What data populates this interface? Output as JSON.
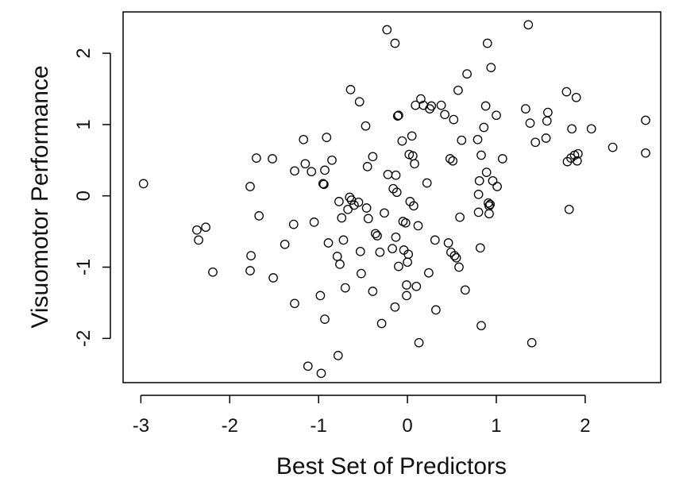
{
  "chart_data": {
    "type": "scatter",
    "title": "",
    "xlabel": "Best Set of Predictors",
    "ylabel": "Visuomotor Performance",
    "xlim": [
      -3.2,
      2.85
    ],
    "ylim": [
      -2.62,
      2.58
    ],
    "xticks": [
      -3,
      -2,
      -1,
      0,
      1,
      2
    ],
    "yticks": [
      -2,
      -1,
      0,
      1,
      2
    ],
    "xtick_labels": [
      "-3",
      "-2",
      "-1",
      "0",
      "1",
      "2"
    ],
    "ytick_labels": [
      "-2",
      "-1",
      "0",
      "1",
      "2"
    ],
    "grid": false,
    "legend": "none",
    "marker": "open-circle",
    "colors": {
      "marker_stroke": "#000000",
      "axis": "#000000"
    },
    "points": [
      {
        "x": -2.97,
        "y": 0.17
      },
      {
        "x": -2.37,
        "y": -0.48
      },
      {
        "x": -2.35,
        "y": -0.62
      },
      {
        "x": -2.27,
        "y": -0.44
      },
      {
        "x": -2.19,
        "y": -1.07
      },
      {
        "x": -1.77,
        "y": 0.13
      },
      {
        "x": -1.77,
        "y": -1.05
      },
      {
        "x": -1.76,
        "y": -0.84
      },
      {
        "x": -1.7,
        "y": 0.53
      },
      {
        "x": -1.67,
        "y": -0.28
      },
      {
        "x": -1.52,
        "y": 0.52
      },
      {
        "x": -1.51,
        "y": -1.15
      },
      {
        "x": -1.38,
        "y": -0.68
      },
      {
        "x": -1.28,
        "y": -0.4
      },
      {
        "x": -1.27,
        "y": -1.51
      },
      {
        "x": -1.27,
        "y": 0.35
      },
      {
        "x": -1.17,
        "y": 0.79
      },
      {
        "x": -1.15,
        "y": 0.45
      },
      {
        "x": -1.12,
        "y": -2.39
      },
      {
        "x": -1.08,
        "y": 0.34
      },
      {
        "x": -1.05,
        "y": -0.37
      },
      {
        "x": -0.98,
        "y": -1.4
      },
      {
        "x": -0.97,
        "y": -2.49
      },
      {
        "x": -0.95,
        "y": 0.17
      },
      {
        "x": -0.94,
        "y": 0.16
      },
      {
        "x": -0.93,
        "y": 0.36
      },
      {
        "x": -0.93,
        "y": -1.73
      },
      {
        "x": -0.91,
        "y": 0.82
      },
      {
        "x": -0.89,
        "y": -0.66
      },
      {
        "x": -0.85,
        "y": 0.5
      },
      {
        "x": -0.79,
        "y": -0.85
      },
      {
        "x": -0.78,
        "y": -2.24
      },
      {
        "x": -0.77,
        "y": -0.08
      },
      {
        "x": -0.76,
        "y": -0.96
      },
      {
        "x": -0.74,
        "y": -0.31
      },
      {
        "x": -0.72,
        "y": -0.62
      },
      {
        "x": -0.7,
        "y": -1.29
      },
      {
        "x": -0.67,
        "y": -0.19
      },
      {
        "x": -0.65,
        "y": -0.02
      },
      {
        "x": -0.64,
        "y": 1.49
      },
      {
        "x": -0.63,
        "y": -0.06
      },
      {
        "x": -0.6,
        "y": -0.13
      },
      {
        "x": -0.55,
        "y": -0.09
      },
      {
        "x": -0.54,
        "y": 1.32
      },
      {
        "x": -0.53,
        "y": -0.78
      },
      {
        "x": -0.52,
        "y": -1.09
      },
      {
        "x": -0.47,
        "y": 0.98
      },
      {
        "x": -0.46,
        "y": -0.17
      },
      {
        "x": -0.45,
        "y": 0.41
      },
      {
        "x": -0.44,
        "y": -0.32
      },
      {
        "x": -0.39,
        "y": 0.55
      },
      {
        "x": -0.39,
        "y": -1.34
      },
      {
        "x": -0.36,
        "y": -0.53
      },
      {
        "x": -0.34,
        "y": -0.56
      },
      {
        "x": -0.31,
        "y": -0.79
      },
      {
        "x": -0.29,
        "y": -1.79
      },
      {
        "x": -0.26,
        "y": -0.24
      },
      {
        "x": -0.23,
        "y": 2.33
      },
      {
        "x": -0.22,
        "y": 0.3
      },
      {
        "x": -0.17,
        "y": -0.74
      },
      {
        "x": -0.16,
        "y": 0.1
      },
      {
        "x": -0.14,
        "y": 2.14
      },
      {
        "x": -0.14,
        "y": -1.56
      },
      {
        "x": -0.13,
        "y": 0.29
      },
      {
        "x": -0.13,
        "y": -0.58
      },
      {
        "x": -0.12,
        "y": 0.05
      },
      {
        "x": -0.11,
        "y": 1.12
      },
      {
        "x": -0.1,
        "y": 1.13
      },
      {
        "x": -0.1,
        "y": -0.99
      },
      {
        "x": -0.06,
        "y": 0.77
      },
      {
        "x": -0.05,
        "y": -0.36
      },
      {
        "x": -0.04,
        "y": -0.76
      },
      {
        "x": -0.02,
        "y": -0.38
      },
      {
        "x": -0.01,
        "y": -1.25
      },
      {
        "x": -0.01,
        "y": -1.4
      },
      {
        "x": 0.0,
        "y": -0.93
      },
      {
        "x": 0.01,
        "y": -0.82
      },
      {
        "x": 0.02,
        "y": 0.58
      },
      {
        "x": 0.03,
        "y": -0.08
      },
      {
        "x": 0.05,
        "y": 0.84
      },
      {
        "x": 0.06,
        "y": 0.56
      },
      {
        "x": 0.07,
        "y": -0.14
      },
      {
        "x": 0.08,
        "y": 0.45
      },
      {
        "x": 0.09,
        "y": 1.27
      },
      {
        "x": 0.1,
        "y": -1.27
      },
      {
        "x": 0.12,
        "y": -0.42
      },
      {
        "x": 0.13,
        "y": -2.06
      },
      {
        "x": 0.15,
        "y": 1.36
      },
      {
        "x": 0.18,
        "y": 1.27
      },
      {
        "x": 0.22,
        "y": 0.18
      },
      {
        "x": 0.24,
        "y": -1.08
      },
      {
        "x": 0.25,
        "y": 1.22
      },
      {
        "x": 0.27,
        "y": 1.26
      },
      {
        "x": 0.31,
        "y": -0.62
      },
      {
        "x": 0.32,
        "y": -1.6
      },
      {
        "x": 0.38,
        "y": 1.27
      },
      {
        "x": 0.42,
        "y": 1.14
      },
      {
        "x": 0.46,
        "y": -0.66
      },
      {
        "x": 0.48,
        "y": 0.52
      },
      {
        "x": 0.49,
        "y": -0.79
      },
      {
        "x": 0.51,
        "y": 0.49
      },
      {
        "x": 0.52,
        "y": 1.07
      },
      {
        "x": 0.53,
        "y": -0.84
      },
      {
        "x": 0.55,
        "y": -0.87
      },
      {
        "x": 0.57,
        "y": 1.48
      },
      {
        "x": 0.58,
        "y": -1.0
      },
      {
        "x": 0.59,
        "y": -0.3
      },
      {
        "x": 0.61,
        "y": 0.78
      },
      {
        "x": 0.65,
        "y": -1.32
      },
      {
        "x": 0.67,
        "y": 1.71
      },
      {
        "x": 0.79,
        "y": 0.79
      },
      {
        "x": 0.8,
        "y": -0.23
      },
      {
        "x": 0.8,
        "y": 0.02
      },
      {
        "x": 0.81,
        "y": 0.21
      },
      {
        "x": 0.82,
        "y": -0.73
      },
      {
        "x": 0.83,
        "y": 0.57
      },
      {
        "x": 0.83,
        "y": -1.82
      },
      {
        "x": 0.86,
        "y": 0.96
      },
      {
        "x": 0.88,
        "y": 1.26
      },
      {
        "x": 0.89,
        "y": 0.33
      },
      {
        "x": 0.9,
        "y": 2.14
      },
      {
        "x": 0.91,
        "y": -0.1
      },
      {
        "x": 0.92,
        "y": -0.25
      },
      {
        "x": 0.92,
        "y": -0.14
      },
      {
        "x": 0.93,
        "y": -0.12
      },
      {
        "x": 0.94,
        "y": 1.8
      },
      {
        "x": 0.96,
        "y": 0.21
      },
      {
        "x": 1.0,
        "y": 1.13
      },
      {
        "x": 1.01,
        "y": 0.13
      },
      {
        "x": 1.07,
        "y": 0.52
      },
      {
        "x": 1.33,
        "y": 1.22
      },
      {
        "x": 1.36,
        "y": 2.4
      },
      {
        "x": 1.38,
        "y": 1.02
      },
      {
        "x": 1.4,
        "y": -2.06
      },
      {
        "x": 1.44,
        "y": 0.75
      },
      {
        "x": 1.56,
        "y": 0.81
      },
      {
        "x": 1.57,
        "y": 1.05
      },
      {
        "x": 1.58,
        "y": 1.17
      },
      {
        "x": 1.79,
        "y": 1.46
      },
      {
        "x": 1.8,
        "y": 0.48
      },
      {
        "x": 1.82,
        "y": -0.19
      },
      {
        "x": 1.84,
        "y": 0.53
      },
      {
        "x": 1.85,
        "y": 0.94
      },
      {
        "x": 1.88,
        "y": 0.57
      },
      {
        "x": 1.9,
        "y": 1.38
      },
      {
        "x": 1.91,
        "y": 0.49
      },
      {
        "x": 1.92,
        "y": 0.59
      },
      {
        "x": 2.07,
        "y": 0.94
      },
      {
        "x": 2.31,
        "y": 0.68
      },
      {
        "x": 2.68,
        "y": 1.06
      },
      {
        "x": 2.68,
        "y": 0.6
      }
    ]
  }
}
